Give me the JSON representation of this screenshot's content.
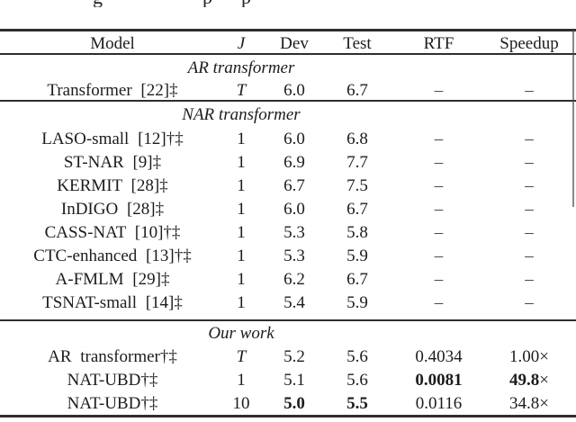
{
  "colors": {
    "background": "#ffffff",
    "text": "#1c1c1c",
    "rule": "#2e2e2e"
  },
  "caption": {
    "fragments": [
      "g",
      "p",
      "p"
    ]
  },
  "table": {
    "header": {
      "model": "Model",
      "j": "J",
      "dev": "Dev",
      "test": "Test",
      "rtf": "RTF",
      "speedup": "Speedup"
    },
    "sections": [
      {
        "label": "AR transformer",
        "rows": [
          {
            "model": "Transformer [22]‡",
            "j": "T",
            "j_italic": true,
            "dev": "6.0",
            "test": "6.7",
            "rtf": "–",
            "speedup": "–"
          }
        ]
      },
      {
        "label": "NAR transformer",
        "rows": [
          {
            "model": "LASO-small [12]†‡",
            "j": "1",
            "dev": "6.0",
            "test": "6.8",
            "rtf": "–",
            "speedup": "–"
          },
          {
            "model": "ST-NAR [9]‡",
            "j": "1",
            "dev": "6.9",
            "test": "7.7",
            "rtf": "–",
            "speedup": "–"
          },
          {
            "model": "KERMIT [28]‡",
            "j": "1",
            "dev": "6.7",
            "test": "7.5",
            "rtf": "–",
            "speedup": "–"
          },
          {
            "model": "InDIGO [28]‡",
            "j": "1",
            "dev": "6.0",
            "test": "6.7",
            "rtf": "–",
            "speedup": "–"
          },
          {
            "model": "CASS-NAT [10]†‡",
            "j": "1",
            "dev": "5.3",
            "test": "5.8",
            "rtf": "–",
            "speedup": "–"
          },
          {
            "model": "CTC-enhanced [13]†‡",
            "j": "1",
            "dev": "5.3",
            "test": "5.9",
            "rtf": "–",
            "speedup": "–"
          },
          {
            "model": "A-FMLM [29]‡",
            "j": "1",
            "dev": "6.2",
            "test": "6.7",
            "rtf": "–",
            "speedup": "–"
          },
          {
            "model": "TSNAT-small [14]‡",
            "j": "1",
            "dev": "5.4",
            "test": "5.9",
            "rtf": "–",
            "speedup": "–"
          }
        ]
      },
      {
        "label": "Our work",
        "rows": [
          {
            "model": "AR transformer†‡",
            "j": "T",
            "j_italic": true,
            "dev": "5.2",
            "test": "5.6",
            "rtf": "0.4034",
            "speedup": "1.00",
            "speedup_suffix": "×"
          },
          {
            "model": "NAT-UBD†‡",
            "j": "1",
            "dev": "5.1",
            "test": "5.6",
            "rtf": "0.0081",
            "speedup": "49.8",
            "speedup_suffix": "×",
            "bold": {
              "rtf": true,
              "speedup": true
            }
          },
          {
            "model": "NAT-UBD†‡",
            "j": "10",
            "dev": "5.0",
            "test": "5.5",
            "rtf": "0.0116",
            "speedup": "34.8",
            "speedup_suffix": "×",
            "bold": {
              "dev": true,
              "test": true
            }
          }
        ]
      }
    ]
  }
}
